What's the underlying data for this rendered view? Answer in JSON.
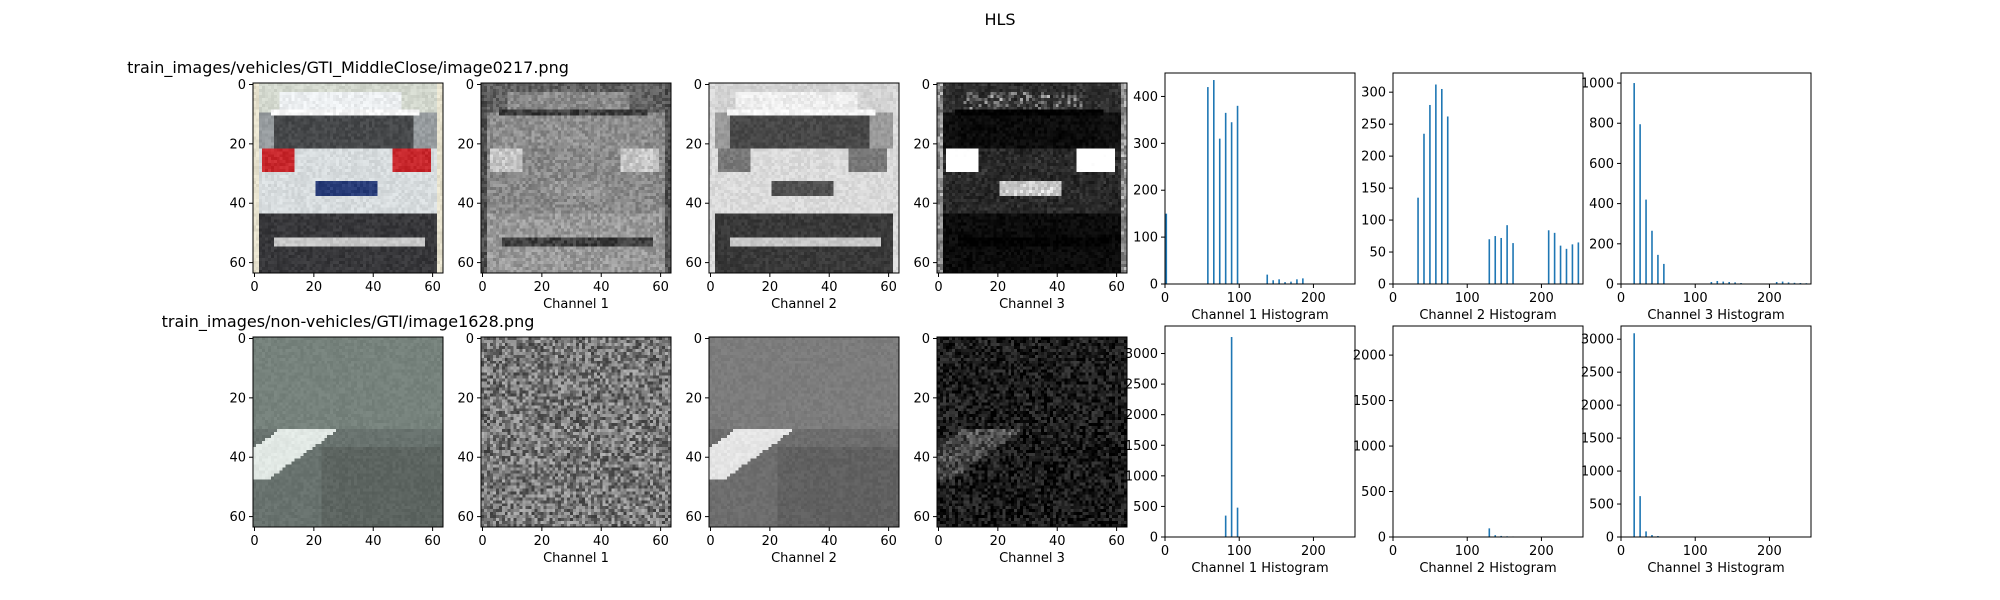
{
  "suptitle": "HLS",
  "rows": [
    {
      "title": "train_images/vehicles/GTI_MiddleClose/image0217.png",
      "image_kind": "car-rear",
      "image_ticks": [
        0,
        20,
        40,
        60
      ],
      "image_panels": [
        {
          "label": "",
          "channel": "rgb"
        },
        {
          "label": "Channel 1",
          "channel": "hue"
        },
        {
          "label": "Channel 2",
          "channel": "lightness"
        },
        {
          "label": "Channel 3",
          "channel": "saturation"
        }
      ],
      "hist_panels": [
        {
          "label": "Channel 1 Histogram",
          "yticks": [
            0,
            100,
            200,
            300,
            400
          ],
          "ymax": 450
        },
        {
          "label": "Channel 2 Histogram",
          "yticks": [
            0,
            50,
            100,
            150,
            200,
            250,
            300
          ],
          "ymax": 330
        },
        {
          "label": "Channel 3 Histogram",
          "yticks": [
            0,
            200,
            400,
            600,
            800,
            1000
          ],
          "ymax": 1050
        }
      ]
    },
    {
      "title": "train_images/non-vehicles/GTI/image1628.png",
      "image_kind": "road",
      "image_ticks": [
        0,
        20,
        40,
        60
      ],
      "image_panels": [
        {
          "label": "",
          "channel": "rgb"
        },
        {
          "label": "Channel 1",
          "channel": "hue"
        },
        {
          "label": "Channel 2",
          "channel": "lightness"
        },
        {
          "label": "Channel 3",
          "channel": "saturation"
        }
      ],
      "hist_panels": [
        {
          "label": "Channel 1 Histogram",
          "yticks": [
            0,
            500,
            1000,
            1500,
            2000,
            2500,
            3000
          ],
          "ymax": 3450
        },
        {
          "label": "Channel 2 Histogram",
          "yticks": [
            0,
            500,
            1000,
            1500,
            2000
          ],
          "ymax": 2320
        },
        {
          "label": "Channel 3 Histogram",
          "yticks": [
            0,
            500,
            1000,
            1500,
            2000,
            2500,
            3000
          ],
          "ymax": 3200
        }
      ]
    }
  ],
  "chart_data": {
    "type": "bar",
    "title": "HLS",
    "hist_xticks": [
      0,
      100,
      200
    ],
    "hist_xlim": [
      0,
      256
    ],
    "bin_width": 8,
    "bar_color": "#1f77b4",
    "series": [
      {
        "name": "Channel 1 Histogram",
        "x": [
          0,
          56,
          64,
          72,
          80,
          88,
          96,
          136,
          144,
          152,
          160,
          168,
          176,
          184
        ],
        "values": [
          150,
          420,
          435,
          310,
          365,
          345,
          380,
          20,
          8,
          10,
          4,
          5,
          10,
          12
        ]
      },
      {
        "name": "Channel 2 Histogram",
        "x": [
          32,
          40,
          48,
          56,
          64,
          72,
          128,
          136,
          144,
          152,
          160,
          208,
          216,
          224,
          232,
          240,
          248
        ],
        "values": [
          135,
          235,
          280,
          312,
          305,
          262,
          70,
          75,
          72,
          92,
          64,
          84,
          80,
          60,
          55,
          62,
          65
        ]
      },
      {
        "name": "Channel 3 Histogram",
        "x": [
          16,
          24,
          32,
          40,
          48,
          56,
          120,
          128,
          136,
          144,
          152,
          160,
          208,
          216,
          224,
          232,
          240,
          248
        ],
        "values": [
          1000,
          795,
          420,
          265,
          145,
          100,
          10,
          15,
          12,
          10,
          8,
          5,
          10,
          12,
          8,
          6,
          5,
          4
        ]
      },
      {
        "name": "Channel 1 Histogram",
        "x": [
          80,
          88,
          96
        ],
        "values": [
          350,
          3270,
          480
        ]
      },
      {
        "name": "Channel 2 Histogram",
        "x": [
          128,
          136,
          144,
          152,
          160,
          168
        ],
        "values": [
          95,
          20,
          12,
          8,
          6,
          4
        ]
      },
      {
        "name": "Channel 3 Histogram",
        "x": [
          16,
          24,
          32,
          40,
          48
        ],
        "values": [
          3090,
          620,
          85,
          30,
          15
        ]
      }
    ]
  }
}
